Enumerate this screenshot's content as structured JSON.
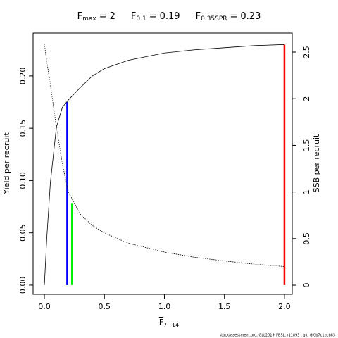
{
  "chart_data": {
    "type": "line",
    "reference_points": [
      {
        "symbol": "F",
        "subscript": "max",
        "operator": "=",
        "value": 2,
        "color": "#ff0000",
        "top": 0.23,
        "axis": "y"
      },
      {
        "symbol": "F",
        "subscript": "0.1",
        "operator": "=",
        "value": 0.19,
        "color": "#0000ff",
        "top": 0.175,
        "axis": "y"
      },
      {
        "symbol": "F",
        "subscript": "0.35SPR",
        "operator": "=",
        "value": 0.23,
        "color": "#00ee00",
        "top": 0.88,
        "axis": "y2"
      }
    ],
    "xlabel": {
      "symbol": "F",
      "subscript": "7−14"
    },
    "ylabel": "Yield per recruit",
    "y2label": "SSB per recruit",
    "footer": "stockassessment.org, GLL2019_FBSL, r11893 ; git: df0b7c1bcb83",
    "x": [
      0,
      0.02,
      0.05,
      0.1,
      0.15,
      0.2,
      0.3,
      0.4,
      0.5,
      0.7,
      1,
      1.25,
      1.5,
      1.75,
      2
    ],
    "series": [
      {
        "name": "Yield per recruit",
        "color": "#000000",
        "dash": "solid",
        "axis": "y",
        "values": [
          0,
          0.045,
          0.098,
          0.151,
          0.17,
          0.177,
          0.189,
          0.2,
          0.207,
          0.215,
          0.222,
          0.225,
          0.227,
          0.229,
          0.23
        ]
      },
      {
        "name": "SSB per recruit",
        "color": "#000000",
        "dash": "dotted",
        "axis": "y2",
        "values": [
          2.59,
          2.4,
          2.15,
          1.7,
          1.3,
          1.0,
          0.76,
          0.64,
          0.56,
          0.45,
          0.355,
          0.3,
          0.26,
          0.225,
          0.2
        ]
      }
    ],
    "xlim": [
      -0.094,
      2.065
    ],
    "ylim": [
      -0.0088,
      0.241
    ],
    "y2lim": [
      -0.098,
      2.704
    ],
    "xticks": [
      {
        "value": 0,
        "label": "0.0"
      },
      0.5,
      {
        "value": 1,
        "label": "1.0"
      },
      1.5,
      {
        "value": 2,
        "label": "2.0"
      }
    ],
    "yticks": [
      {
        "value": 0,
        "label": "0.00"
      },
      {
        "value": 0.05,
        "label": "0.05"
      },
      {
        "value": 0.1,
        "label": "0.10"
      },
      {
        "value": 0.15,
        "label": "0.15"
      },
      {
        "value": 0.2,
        "label": "0.20"
      }
    ],
    "y2ticks": [
      0,
      0.5,
      1,
      1.5,
      2,
      2.5
    ]
  }
}
